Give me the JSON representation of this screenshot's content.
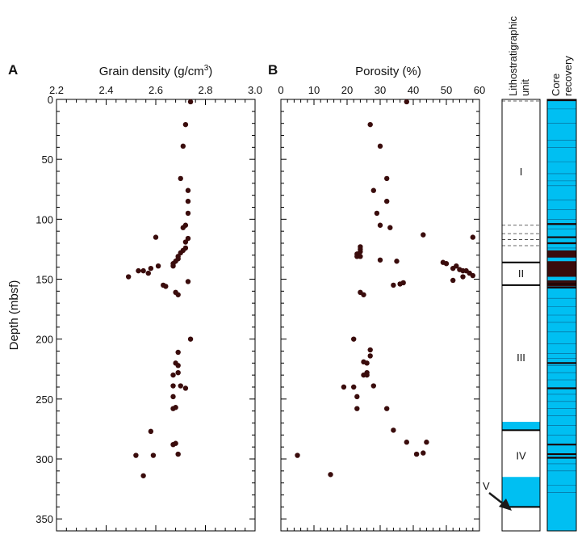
{
  "chart_data": [
    {
      "type": "scatter",
      "panel": "A",
      "title": "Grain density (g/cm³)",
      "title_main": "Grain density (g/cm",
      "title_sup": "3",
      "title_end": ")",
      "ylabel": "Depth (mbsf)",
      "xlim": [
        2.2,
        3.0
      ],
      "ylim": [
        0,
        360
      ],
      "y_reversed": true,
      "x_ticks": [
        "2.2",
        "2.4",
        "2.6",
        "2.8",
        "3.0"
      ],
      "y_ticks": [
        "0",
        "50",
        "100",
        "150",
        "200",
        "250",
        "300",
        "350"
      ],
      "marker_color": "#3a0c0c",
      "series": [
        {
          "x": [
            2.74,
            2.72,
            2.71,
            2.7,
            2.73,
            2.73,
            2.73,
            2.72,
            2.71,
            2.73,
            2.72,
            2.6,
            2.72,
            2.71,
            2.7,
            2.69,
            2.69,
            2.68,
            2.67,
            2.67,
            2.61,
            2.58,
            2.55,
            2.53,
            2.57,
            2.49,
            2.73,
            2.64,
            2.63,
            2.68,
            2.69,
            2.74,
            2.69,
            2.68,
            2.69,
            2.67,
            2.69,
            2.67,
            2.7,
            2.72,
            2.67,
            2.68,
            2.67,
            2.68,
            2.58,
            2.67,
            2.69,
            2.52,
            2.59,
            2.55
          ],
          "y": [
            2,
            21,
            39,
            66,
            76,
            85,
            95,
            105,
            107,
            116,
            119,
            115,
            124,
            126,
            128,
            131,
            133,
            135,
            137,
            139,
            139,
            141,
            143,
            143,
            145,
            148,
            152,
            156,
            155,
            161,
            163,
            200,
            211,
            220,
            222,
            230,
            228,
            239,
            239,
            241,
            248,
            257,
            258,
            287,
            277,
            288,
            296,
            297,
            297,
            314
          ]
        }
      ]
    },
    {
      "type": "scatter",
      "panel": "B",
      "title": "Porosity (%)",
      "xlim": [
        0,
        60
      ],
      "ylim": [
        0,
        360
      ],
      "y_reversed": true,
      "x_ticks": [
        "0",
        "10",
        "20",
        "30",
        "40",
        "50",
        "60"
      ],
      "marker_color": "#3a0c0c",
      "series": [
        {
          "x": [
            38,
            27,
            30,
            32,
            28,
            32,
            29,
            30,
            33,
            43,
            58,
            24,
            24,
            24,
            23,
            24,
            23,
            30,
            35,
            49,
            50,
            53,
            52,
            54,
            56,
            55,
            57,
            58,
            55,
            52,
            34,
            36,
            37,
            24,
            25,
            22,
            27,
            27,
            25,
            26,
            26,
            26,
            25,
            22,
            19,
            28,
            23,
            23,
            32,
            34,
            38,
            44,
            41,
            43,
            5,
            15
          ],
          "y": [
            2,
            21,
            39,
            66,
            76,
            85,
            95,
            105,
            107,
            113,
            115,
            123,
            125,
            127,
            129,
            131,
            131,
            134,
            135,
            136,
            137,
            139,
            141,
            142,
            143,
            143,
            145,
            147,
            148,
            151,
            155,
            154,
            153,
            161,
            163,
            200,
            209,
            214,
            219,
            220,
            228,
            230,
            230,
            240,
            240,
            239,
            248,
            258,
            258,
            276,
            286,
            286,
            296,
            295,
            297,
            313
          ]
        }
      ]
    }
  ],
  "lith_column": {
    "title_line1": "Lithostratigraphic",
    "title_line2": "unit",
    "units": [
      {
        "label": "I",
        "top": 0,
        "bottom": 136,
        "label_depth": 60
      },
      {
        "label": "II",
        "top": 136,
        "bottom": 155,
        "label_depth": 145
      },
      {
        "label": "III",
        "top": 155,
        "bottom": 276,
        "label_depth": 215
      },
      {
        "label": "IV",
        "top": 276,
        "bottom": 340,
        "label_depth": 297
      }
    ],
    "unit_v_label": "V",
    "dashed_boundaries": [
      0,
      105,
      112,
      117,
      122
    ],
    "solid_boundaries": [
      136,
      155,
      276,
      340
    ],
    "fill_color": "#00bff2",
    "filled_ranges": [
      [
        269,
        276
      ],
      [
        315,
        340
      ]
    ]
  },
  "core_recovery": {
    "title_line1": "Core",
    "title_line2": "recovery",
    "fill_color": "#00bff2",
    "dark_color": "#3a0c0c",
    "thin_lines": [
      8,
      20,
      34,
      40,
      52,
      62,
      68,
      72,
      84,
      92,
      100,
      108,
      124,
      132,
      166,
      173,
      180,
      186,
      194,
      204,
      212,
      216,
      222,
      228,
      234,
      246,
      252,
      258,
      264,
      272,
      280,
      304,
      310,
      322,
      328
    ],
    "thick_lines": [
      0,
      104,
      115,
      120,
      154,
      157,
      220,
      241,
      288,
      296,
      299
    ],
    "dark_blocks": [
      [
        126,
        132
      ],
      [
        135,
        148
      ],
      [
        151,
        156
      ]
    ]
  }
}
